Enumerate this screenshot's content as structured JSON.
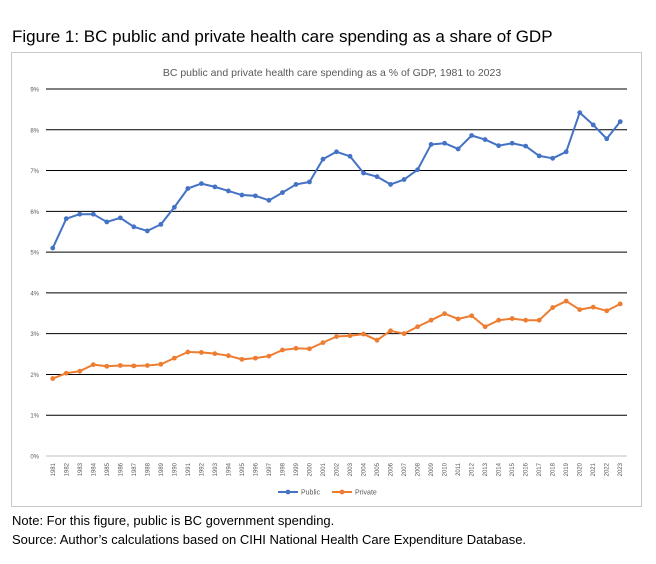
{
  "figure_title": "Figure 1: BC public and private health care spending as a share of GDP",
  "note": "Note: For this figure, public is BC government spending.",
  "source": "Source: Author’s calculations based on CIHI National Health Care Expenditure Database.",
  "colors": {
    "public": "#4472c4",
    "private": "#ed7d31",
    "grid": "#000000"
  },
  "chart_data": {
    "type": "line",
    "title": "BC public and private health care spending as a % of GDP, 1981 to 2023",
    "xlabel": "",
    "ylabel": "",
    "ylim": [
      0,
      9
    ],
    "ytick_values": [
      0,
      1,
      2,
      3,
      4,
      5,
      6,
      7,
      8,
      9
    ],
    "ytick_labels": [
      "0%",
      "1%",
      "2%",
      "3%",
      "4%",
      "5%",
      "6%",
      "7%",
      "8%",
      "9%"
    ],
    "grid": "horizontal",
    "legend_position": "bottom",
    "categories": [
      "1981",
      "1982",
      "1983",
      "1984",
      "1985",
      "1986",
      "1987",
      "1988",
      "1989",
      "1990",
      "1991",
      "1992",
      "1993",
      "1994",
      "1995",
      "1996",
      "1997",
      "1998",
      "1999",
      "2000",
      "2001",
      "2002",
      "2003",
      "2004",
      "2005",
      "2006",
      "2007",
      "2008",
      "2009",
      "2010",
      "2011",
      "2012",
      "2013",
      "2014",
      "2015",
      "2016",
      "2017",
      "2018",
      "2019",
      "2020",
      "2021",
      "2022",
      "2023"
    ],
    "series": [
      {
        "name": "Public",
        "color": "#4472c4",
        "values": [
          5.1,
          5.82,
          5.93,
          5.93,
          5.74,
          5.84,
          5.62,
          5.52,
          5.68,
          6.1,
          6.56,
          6.68,
          6.6,
          6.5,
          6.4,
          6.38,
          6.27,
          6.46,
          6.66,
          6.72,
          7.28,
          7.46,
          7.35,
          6.94,
          6.85,
          6.66,
          6.78,
          7.02,
          7.64,
          7.67,
          7.53,
          7.86,
          7.76,
          7.61,
          7.67,
          7.6,
          7.36,
          7.3,
          7.46,
          8.42,
          8.12,
          7.78,
          8.2
        ]
      },
      {
        "name": "Private",
        "color": "#ed7d31",
        "values": [
          1.9,
          2.03,
          2.08,
          2.24,
          2.2,
          2.22,
          2.21,
          2.22,
          2.25,
          2.4,
          2.55,
          2.54,
          2.51,
          2.46,
          2.37,
          2.4,
          2.45,
          2.6,
          2.64,
          2.63,
          2.78,
          2.93,
          2.95,
          2.99,
          2.84,
          3.07,
          3.0,
          3.17,
          3.33,
          3.49,
          3.36,
          3.44,
          3.17,
          3.33,
          3.37,
          3.33,
          3.33,
          3.64,
          3.8,
          3.59,
          3.65,
          3.56,
          3.73
        ]
      }
    ]
  }
}
